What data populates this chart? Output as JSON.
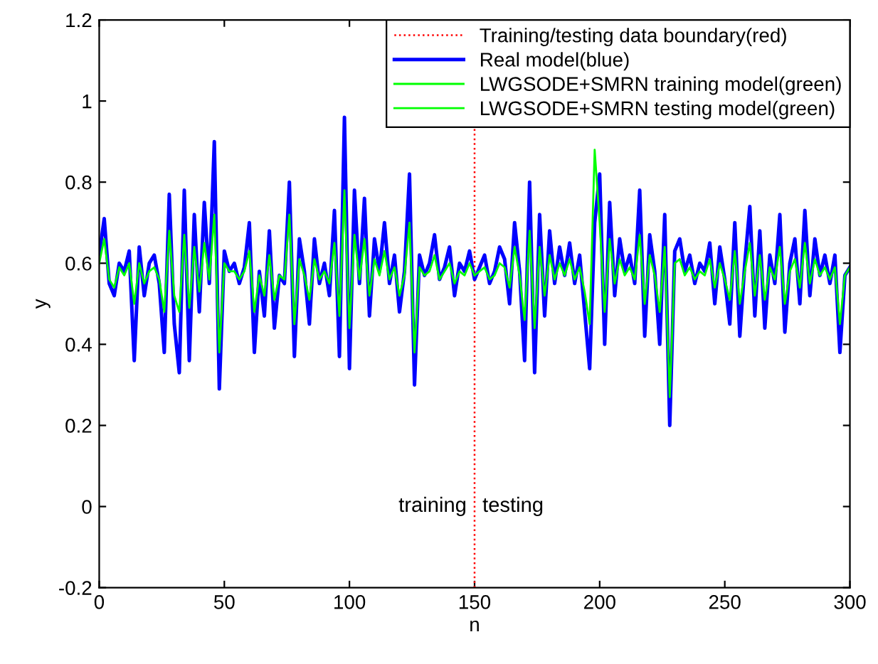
{
  "chart_data": {
    "type": "line",
    "xlabel": "n",
    "ylabel": "y",
    "xlim": [
      0,
      300
    ],
    "xticks": [
      0,
      50,
      100,
      150,
      200,
      250,
      300
    ],
    "ylim": [
      -0.2,
      1.2
    ],
    "yticks": [
      -0.2,
      0,
      0.2,
      0.4,
      0.6,
      0.8,
      1,
      1.2
    ],
    "grid": false,
    "legend": "top right",
    "line_style": "solid",
    "marker": "none",
    "ref_lines": [
      {
        "axis": "x",
        "value": 150,
        "label": "Training/testing data boundary(red)",
        "color": "#ff0000",
        "line_style": "dotted"
      }
    ],
    "annotations": [
      "training",
      "testing"
    ],
    "series": [
      {
        "name": "Real model(blue)",
        "color": "#0000ff",
        "x": [
          0,
          2,
          4,
          6,
          8,
          10,
          12,
          14,
          16,
          18,
          20,
          22,
          24,
          26,
          28,
          30,
          32,
          34,
          36,
          38,
          40,
          42,
          44,
          46,
          48,
          50,
          52,
          54,
          56,
          58,
          60,
          62,
          64,
          66,
          68,
          70,
          72,
          74,
          76,
          78,
          80,
          82,
          84,
          86,
          88,
          90,
          92,
          94,
          96,
          98,
          100,
          102,
          104,
          106,
          108,
          110,
          112,
          114,
          116,
          118,
          120,
          122,
          124,
          126,
          128,
          130,
          132,
          134,
          136,
          138,
          140,
          142,
          144,
          146,
          148,
          150,
          152,
          154,
          156,
          158,
          160,
          162,
          164,
          166,
          168,
          170,
          172,
          174,
          176,
          178,
          180,
          182,
          184,
          186,
          188,
          190,
          192,
          194,
          196,
          198,
          200,
          202,
          204,
          206,
          208,
          210,
          212,
          214,
          216,
          218,
          220,
          222,
          224,
          226,
          228,
          230,
          232,
          234,
          236,
          238,
          240,
          242,
          244,
          246,
          248,
          250,
          252,
          254,
          256,
          258,
          260,
          262,
          264,
          266,
          268,
          270,
          272,
          274,
          276,
          278,
          280,
          282,
          284,
          286,
          288,
          290,
          292,
          294,
          296,
          298,
          300
        ],
        "values": [
          0.62,
          0.71,
          0.55,
          0.52,
          0.6,
          0.58,
          0.63,
          0.36,
          0.64,
          0.52,
          0.6,
          0.62,
          0.55,
          0.38,
          0.77,
          0.45,
          0.33,
          0.78,
          0.36,
          0.72,
          0.48,
          0.75,
          0.55,
          0.9,
          0.29,
          0.63,
          0.58,
          0.6,
          0.55,
          0.59,
          0.7,
          0.38,
          0.58,
          0.47,
          0.68,
          0.44,
          0.57,
          0.55,
          0.8,
          0.37,
          0.66,
          0.58,
          0.45,
          0.66,
          0.55,
          0.6,
          0.52,
          0.73,
          0.37,
          0.96,
          0.34,
          0.78,
          0.55,
          0.76,
          0.47,
          0.66,
          0.58,
          0.7,
          0.55,
          0.62,
          0.48,
          0.58,
          0.82,
          0.3,
          0.62,
          0.57,
          0.6,
          0.67,
          0.56,
          0.59,
          0.64,
          0.52,
          0.6,
          0.58,
          0.63,
          0.56,
          0.59,
          0.62,
          0.55,
          0.58,
          0.64,
          0.61,
          0.5,
          0.7,
          0.58,
          0.36,
          0.8,
          0.33,
          0.72,
          0.47,
          0.68,
          0.55,
          0.64,
          0.57,
          0.65,
          0.55,
          0.62,
          0.48,
          0.34,
          0.7,
          0.82,
          0.4,
          0.75,
          0.52,
          0.66,
          0.58,
          0.62,
          0.55,
          0.78,
          0.42,
          0.67,
          0.58,
          0.4,
          0.72,
          0.2,
          0.63,
          0.66,
          0.58,
          0.62,
          0.55,
          0.6,
          0.58,
          0.65,
          0.5,
          0.64,
          0.56,
          0.45,
          0.7,
          0.42,
          0.6,
          0.74,
          0.47,
          0.68,
          0.44,
          0.62,
          0.55,
          0.72,
          0.43,
          0.6,
          0.66,
          0.5,
          0.73,
          0.52,
          0.66,
          0.57,
          0.62,
          0.55,
          0.62,
          0.38,
          0.57,
          0.59
        ]
      },
      {
        "name": "LWGSODE+SMRN training model(green)",
        "color": "#00ff00",
        "x": [
          0,
          2,
          4,
          6,
          8,
          10,
          12,
          14,
          16,
          18,
          20,
          22,
          24,
          26,
          28,
          30,
          32,
          34,
          36,
          38,
          40,
          42,
          44,
          46,
          48,
          50,
          52,
          54,
          56,
          58,
          60,
          62,
          64,
          66,
          68,
          70,
          72,
          74,
          76,
          78,
          80,
          82,
          84,
          86,
          88,
          90,
          92,
          94,
          96,
          98,
          100,
          102,
          104,
          106,
          108,
          110,
          112,
          114,
          116,
          118,
          120,
          122,
          124,
          126,
          128,
          130,
          132,
          134,
          136,
          138,
          140,
          142,
          144,
          146,
          148,
          150
        ],
        "values": [
          0.6,
          0.66,
          0.56,
          0.54,
          0.59,
          0.57,
          0.6,
          0.5,
          0.6,
          0.55,
          0.58,
          0.59,
          0.56,
          0.48,
          0.68,
          0.52,
          0.48,
          0.67,
          0.49,
          0.64,
          0.53,
          0.65,
          0.56,
          0.72,
          0.38,
          0.6,
          0.58,
          0.58,
          0.56,
          0.58,
          0.63,
          0.48,
          0.57,
          0.52,
          0.62,
          0.51,
          0.57,
          0.56,
          0.72,
          0.45,
          0.61,
          0.57,
          0.51,
          0.61,
          0.56,
          0.58,
          0.55,
          0.65,
          0.47,
          0.78,
          0.44,
          0.67,
          0.56,
          0.66,
          0.52,
          0.61,
          0.57,
          0.63,
          0.56,
          0.59,
          0.52,
          0.57,
          0.7,
          0.38,
          0.59,
          0.57,
          0.58,
          0.62,
          0.56,
          0.58,
          0.6,
          0.55,
          0.58,
          0.57,
          0.6,
          0.57
        ]
      },
      {
        "name": "LWGSODE+SMRN testing model(green)",
        "color": "#00ff00",
        "x": [
          150,
          152,
          154,
          156,
          158,
          160,
          162,
          164,
          166,
          168,
          170,
          172,
          174,
          176,
          178,
          180,
          182,
          184,
          186,
          188,
          190,
          192,
          194,
          196,
          198,
          200,
          202,
          204,
          206,
          208,
          210,
          212,
          214,
          216,
          218,
          220,
          222,
          224,
          226,
          228,
          230,
          232,
          234,
          236,
          238,
          240,
          242,
          244,
          246,
          248,
          250,
          252,
          254,
          256,
          258,
          260,
          262,
          264,
          266,
          268,
          270,
          272,
          274,
          276,
          278,
          280,
          282,
          284,
          286,
          288,
          290,
          292,
          294,
          296,
          298,
          300
        ],
        "values": [
          0.57,
          0.58,
          0.59,
          0.56,
          0.57,
          0.6,
          0.59,
          0.54,
          0.64,
          0.57,
          0.46,
          0.68,
          0.44,
          0.64,
          0.52,
          0.62,
          0.56,
          0.6,
          0.57,
          0.61,
          0.56,
          0.59,
          0.53,
          0.45,
          0.88,
          0.7,
          0.48,
          0.66,
          0.55,
          0.61,
          0.57,
          0.59,
          0.56,
          0.67,
          0.5,
          0.62,
          0.57,
          0.48,
          0.64,
          0.27,
          0.6,
          0.61,
          0.57,
          0.59,
          0.56,
          0.58,
          0.57,
          0.61,
          0.54,
          0.6,
          0.56,
          0.51,
          0.63,
          0.5,
          0.58,
          0.65,
          0.52,
          0.62,
          0.51,
          0.59,
          0.56,
          0.64,
          0.5,
          0.58,
          0.61,
          0.54,
          0.65,
          0.55,
          0.61,
          0.57,
          0.59,
          0.56,
          0.59,
          0.45,
          0.57,
          0.59
        ]
      }
    ]
  }
}
